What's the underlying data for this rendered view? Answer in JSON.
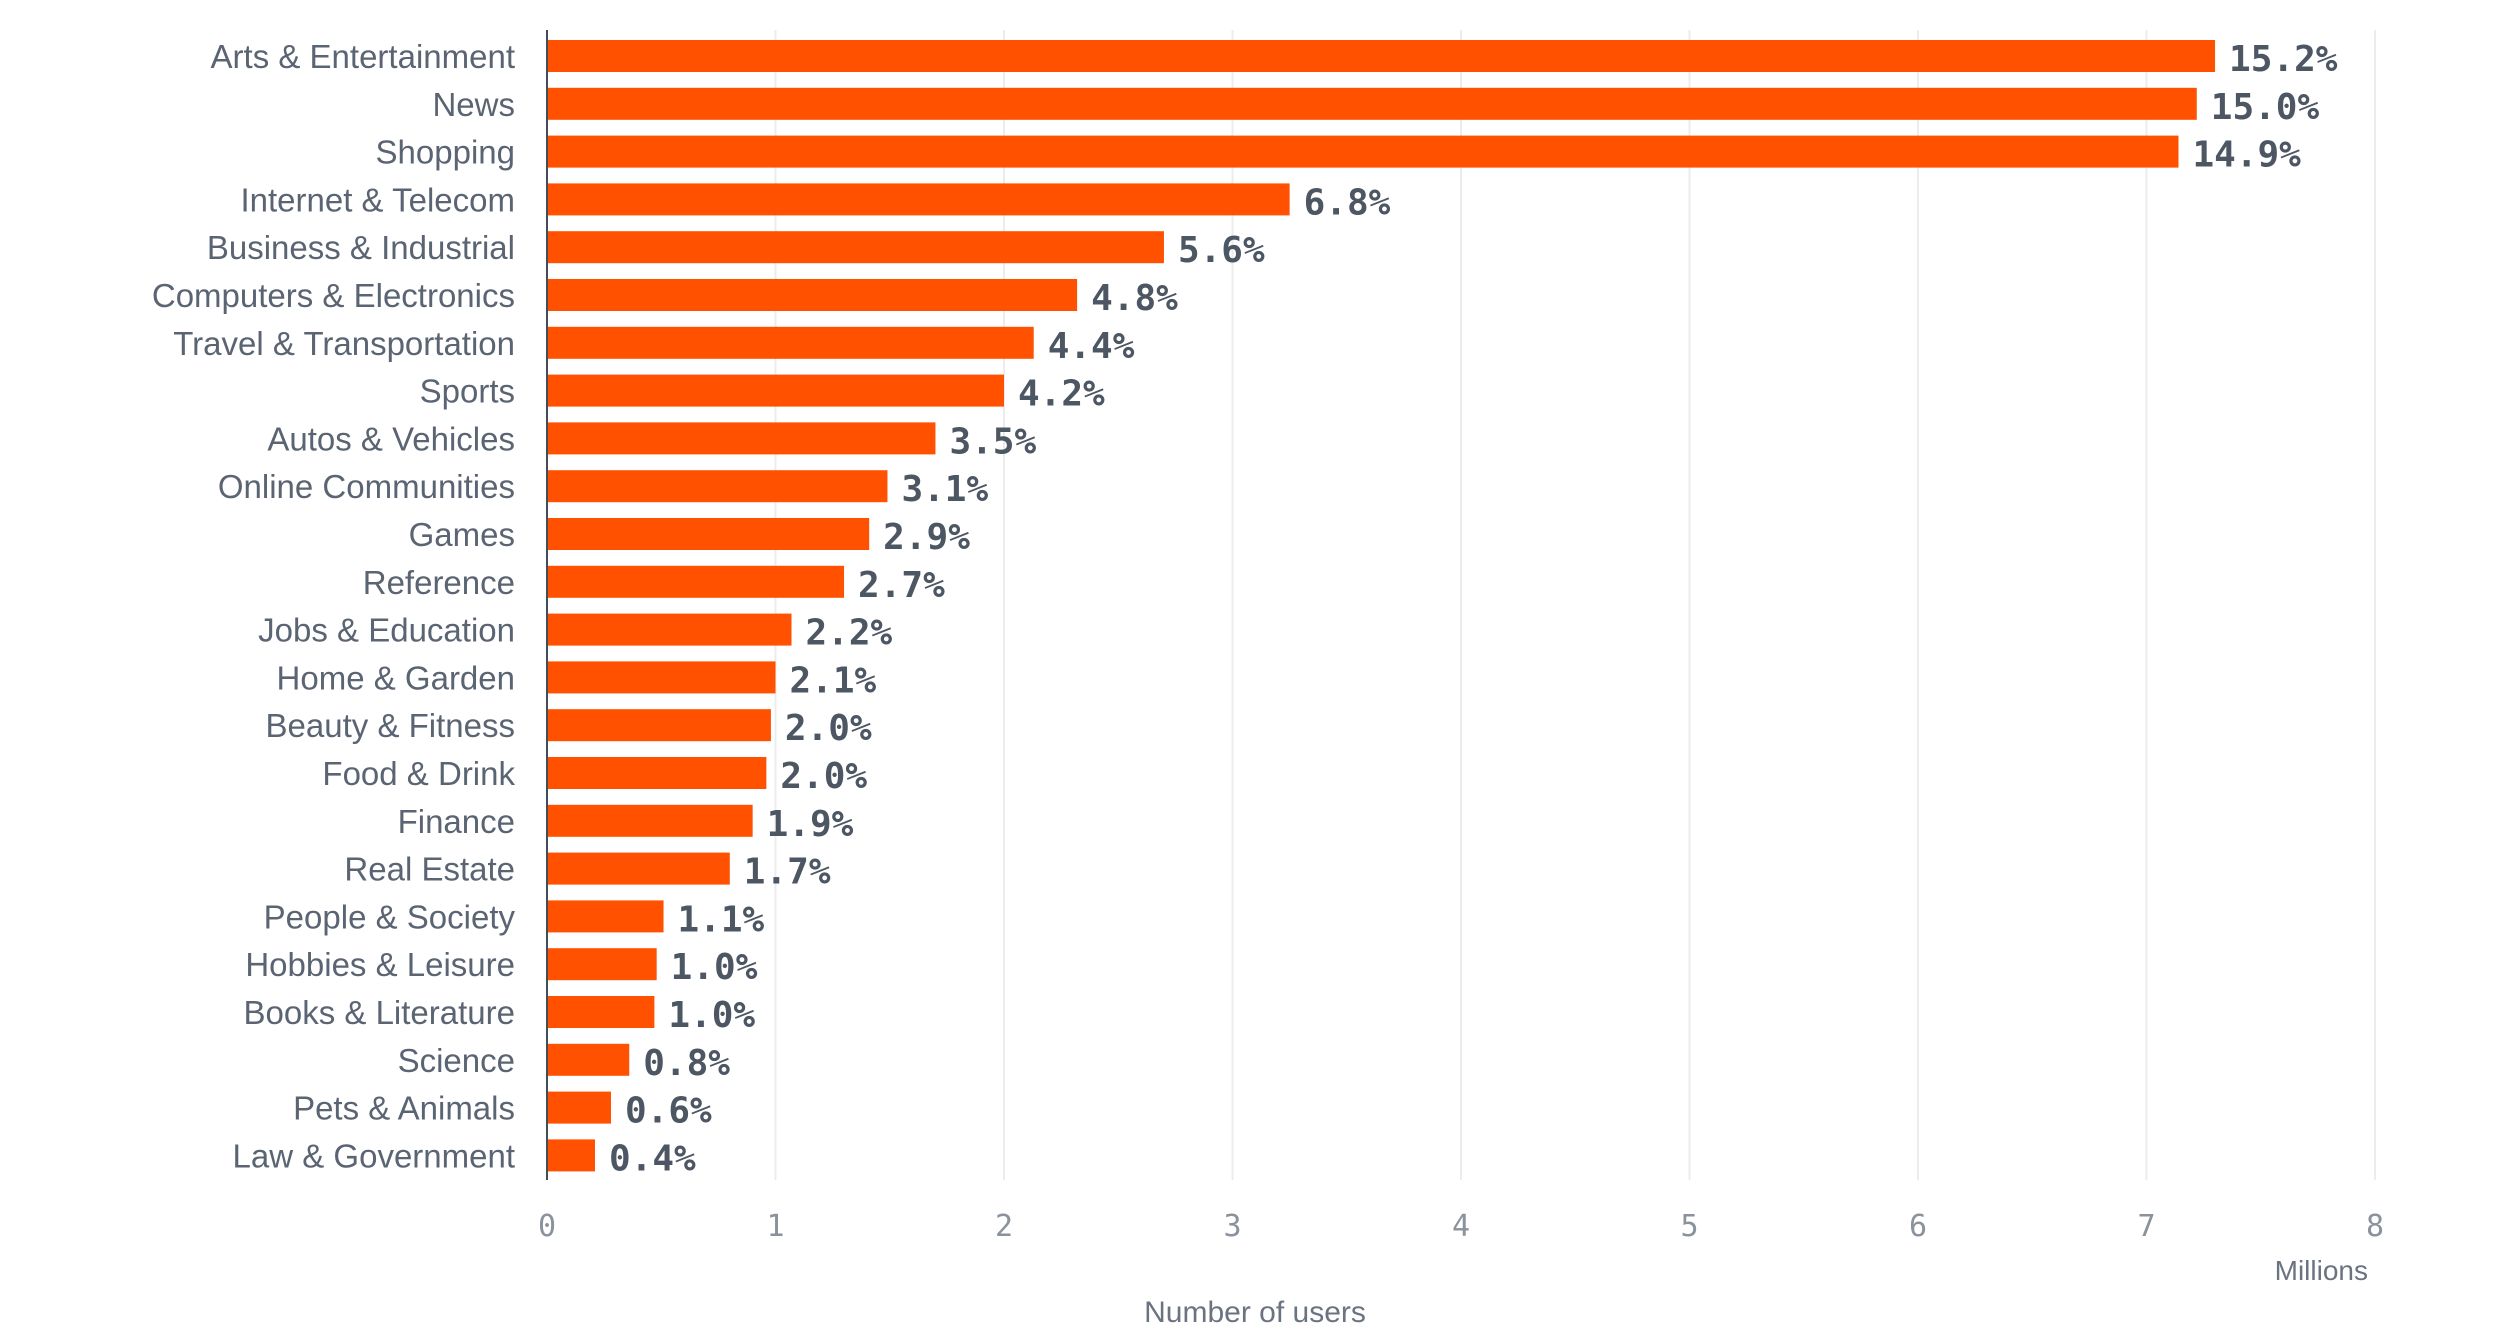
{
  "chart_data": {
    "type": "bar",
    "orientation": "horizontal",
    "categories": [
      "Arts & Entertainment",
      "News",
      "Shopping",
      "Internet & Telecom",
      "Business & Industrial",
      "Computers & Electronics",
      "Travel & Transportation",
      "Sports",
      "Autos & Vehicles",
      "Online Communities",
      "Games",
      "Reference",
      "Jobs & Education",
      "Home & Garden",
      "Beauty & Fitness",
      "Food & Drink",
      "Finance",
      "Real Estate",
      "People & Society",
      "Hobbies & Leisure",
      "Books & Literature",
      "Science",
      "Pets & Animals",
      "Law & Government"
    ],
    "values": [
      7.3,
      7.22,
      7.14,
      3.25,
      2.7,
      2.32,
      2.13,
      2.0,
      1.7,
      1.49,
      1.41,
      1.3,
      1.07,
      1.0,
      0.98,
      0.96,
      0.9,
      0.8,
      0.51,
      0.48,
      0.47,
      0.36,
      0.28,
      0.21
    ],
    "data_labels": [
      "15.2%",
      "15.0%",
      "14.9%",
      "6.8%",
      "5.6%",
      "4.8%",
      "4.4%",
      "4.2%",
      "3.5%",
      "3.1%",
      "2.9%",
      "2.7%",
      "2.2%",
      "2.1%",
      "2.0%",
      "2.0%",
      "1.9%",
      "1.7%",
      "1.1%",
      "1.0%",
      "1.0%",
      "0.8%",
      "0.6%",
      "0.4%"
    ],
    "xlabel": "Number of users",
    "xunit": "Millions",
    "xlim": [
      0,
      8
    ],
    "xticks": [
      "0",
      "1",
      "2",
      "3",
      "4",
      "5",
      "6",
      "7",
      "8"
    ],
    "bar_color": "#ff5100",
    "grid": true,
    "legend": "none"
  }
}
